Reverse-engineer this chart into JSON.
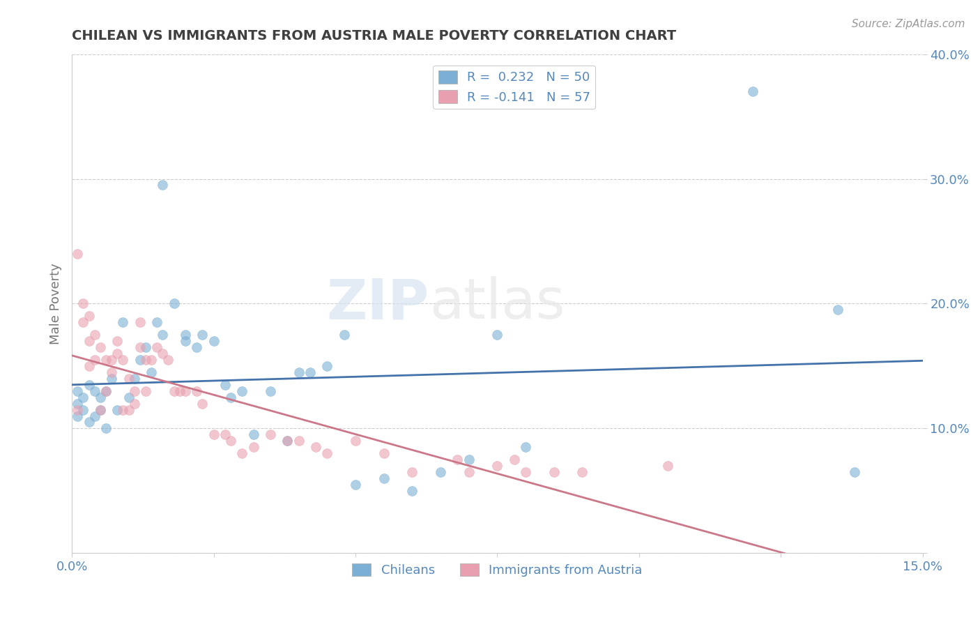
{
  "title": "CHILEAN VS IMMIGRANTS FROM AUSTRIA MALE POVERTY CORRELATION CHART",
  "source": "Source: ZipAtlas.com",
  "ylabel": "Male Poverty",
  "xlim": [
    0.0,
    0.15
  ],
  "ylim": [
    0.0,
    0.4
  ],
  "xticks": [
    0.0,
    0.025,
    0.05,
    0.075,
    0.1,
    0.125,
    0.15
  ],
  "yticks": [
    0.0,
    0.1,
    0.2,
    0.3,
    0.4
  ],
  "xtick_labels": [
    "0.0%",
    "",
    "",
    "",
    "",
    "",
    "15.0%"
  ],
  "ytick_labels": [
    "",
    "10.0%",
    "20.0%",
    "30.0%",
    "40.0%"
  ],
  "chilean_color": "#7bafd4",
  "austrian_color": "#e8a0b0",
  "legend_label_1": "R =  0.232   N = 50",
  "legend_label_2": "R = -0.141   N = 57",
  "bottom_legend_1": "Chileans",
  "bottom_legend_2": "Immigrants from Austria",
  "watermark_zip": "ZIP",
  "watermark_atlas": "atlas",
  "chilean_x": [
    0.001,
    0.001,
    0.001,
    0.002,
    0.002,
    0.003,
    0.003,
    0.004,
    0.004,
    0.005,
    0.005,
    0.006,
    0.006,
    0.007,
    0.008,
    0.009,
    0.01,
    0.011,
    0.012,
    0.013,
    0.014,
    0.015,
    0.016,
    0.018,
    0.02,
    0.022,
    0.023,
    0.025,
    0.028,
    0.03,
    0.032,
    0.035,
    0.038,
    0.04,
    0.042,
    0.045,
    0.048,
    0.05,
    0.055,
    0.06,
    0.065,
    0.07,
    0.075,
    0.08,
    0.12,
    0.135,
    0.138,
    0.016,
    0.02,
    0.027
  ],
  "chilean_y": [
    0.11,
    0.12,
    0.13,
    0.125,
    0.115,
    0.105,
    0.135,
    0.11,
    0.13,
    0.115,
    0.125,
    0.1,
    0.13,
    0.14,
    0.115,
    0.185,
    0.125,
    0.14,
    0.155,
    0.165,
    0.145,
    0.185,
    0.295,
    0.2,
    0.175,
    0.165,
    0.175,
    0.17,
    0.125,
    0.13,
    0.095,
    0.13,
    0.09,
    0.145,
    0.145,
    0.15,
    0.175,
    0.055,
    0.06,
    0.05,
    0.065,
    0.075,
    0.175,
    0.085,
    0.37,
    0.195,
    0.065,
    0.175,
    0.17,
    0.135
  ],
  "austrian_x": [
    0.001,
    0.001,
    0.002,
    0.002,
    0.003,
    0.003,
    0.003,
    0.004,
    0.004,
    0.005,
    0.005,
    0.006,
    0.006,
    0.007,
    0.007,
    0.008,
    0.008,
    0.009,
    0.009,
    0.01,
    0.01,
    0.011,
    0.011,
    0.012,
    0.012,
    0.013,
    0.013,
    0.014,
    0.015,
    0.016,
    0.017,
    0.018,
    0.019,
    0.02,
    0.022,
    0.023,
    0.025,
    0.027,
    0.028,
    0.03,
    0.032,
    0.035,
    0.038,
    0.04,
    0.043,
    0.045,
    0.05,
    0.055,
    0.06,
    0.068,
    0.07,
    0.075,
    0.078,
    0.08,
    0.085,
    0.09,
    0.105
  ],
  "austrian_y": [
    0.115,
    0.24,
    0.2,
    0.185,
    0.15,
    0.17,
    0.19,
    0.175,
    0.155,
    0.115,
    0.165,
    0.13,
    0.155,
    0.145,
    0.155,
    0.16,
    0.17,
    0.115,
    0.155,
    0.115,
    0.14,
    0.13,
    0.12,
    0.165,
    0.185,
    0.13,
    0.155,
    0.155,
    0.165,
    0.16,
    0.155,
    0.13,
    0.13,
    0.13,
    0.13,
    0.12,
    0.095,
    0.095,
    0.09,
    0.08,
    0.085,
    0.095,
    0.09,
    0.09,
    0.085,
    0.08,
    0.09,
    0.08,
    0.065,
    0.075,
    0.065,
    0.07,
    0.075,
    0.065,
    0.065,
    0.065,
    0.07
  ],
  "grid_color": "#cccccc",
  "background_color": "#ffffff",
  "title_color": "#404040",
  "axis_label_color": "#777777",
  "tick_label_color": "#5588bb",
  "legend_text_color": "#5588bb",
  "chilean_line_color": "#4472aa",
  "austrian_line_color": "#cc7788"
}
